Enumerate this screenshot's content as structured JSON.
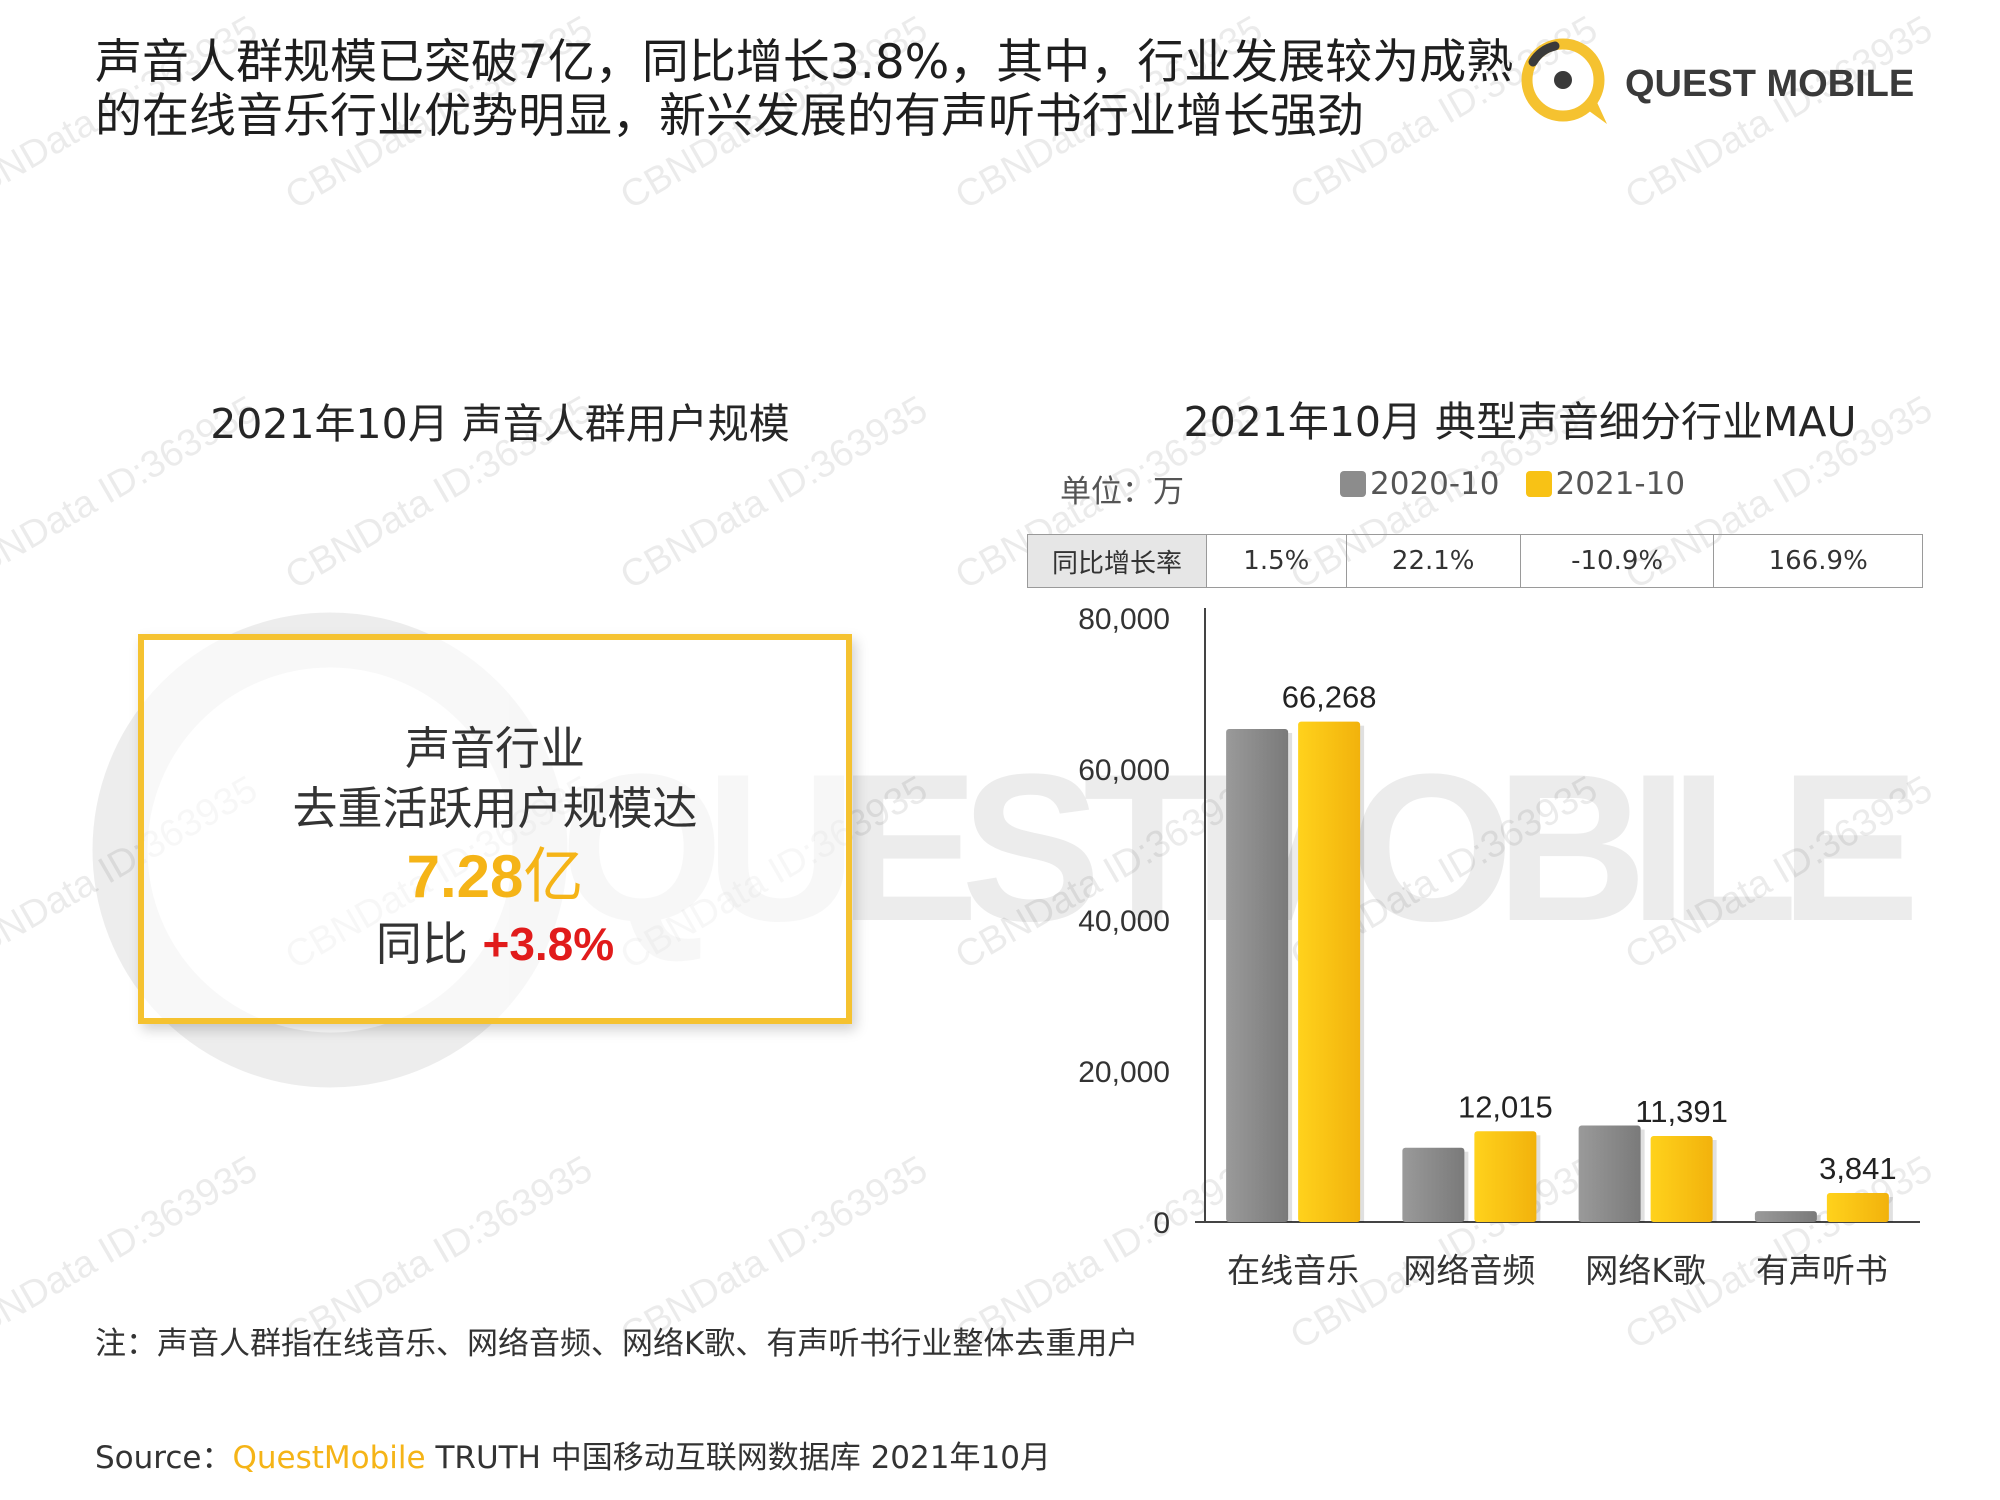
{
  "header": {
    "title": "声音人群规模已突破7亿，同比增长3.8%，其中，行业发展较为成熟的在线音乐行业优势明显，新兴发展的有声听书行业增长强劲",
    "brand_name": "QUEST MOBILE",
    "brand_color": "#f5c230"
  },
  "watermark": {
    "text": "CBNData ID:363935",
    "logo_text": "QUESTMOBILE"
  },
  "left_panel": {
    "title": "2021年10月 声音人群用户规模",
    "box_line1": "声音行业",
    "box_line2": "去重活跃用户规模达",
    "value_number": "7.28",
    "value_unit": "亿",
    "yoy_label": "同比",
    "yoy_value": "+3.8%"
  },
  "right_panel": {
    "title": "2021年10月  典型声音细分行业MAU",
    "unit_label": "单位：万",
    "table_row_header": "同比增长率",
    "growth_rates": [
      "1.5%",
      "22.1%",
      "-10.9%",
      "166.9%"
    ]
  },
  "chart_data": {
    "type": "bar",
    "categories": [
      "在线音乐",
      "网络音频",
      "网络K歌",
      "有声听书"
    ],
    "series": [
      {
        "name": "2020-10",
        "color": "#8c8c8c",
        "values": [
          65300,
          9840,
          12780,
          1440
        ]
      },
      {
        "name": "2021-10",
        "color": "#f8c215",
        "values": [
          66268,
          12015,
          11391,
          3841
        ]
      }
    ],
    "data_labels": [
      "66,268",
      "12,015",
      "11,391",
      "3,841"
    ],
    "ylim": [
      0,
      80000
    ],
    "yticks": [
      0,
      20000,
      40000,
      60000,
      80000
    ],
    "ytick_labels": [
      "0",
      "20,000",
      "40,000",
      "60,000",
      "80,000"
    ],
    "legend_position": "top",
    "grid": false
  },
  "footer": {
    "note": "注：声音人群指在线音乐、网络音频、网络K歌、有声听书行业整体去重用户",
    "source_prefix": "Source：",
    "source_brand": "QuestMobile",
    "source_rest": " TRUTH 中国移动互联网数据库 2021年10月"
  }
}
